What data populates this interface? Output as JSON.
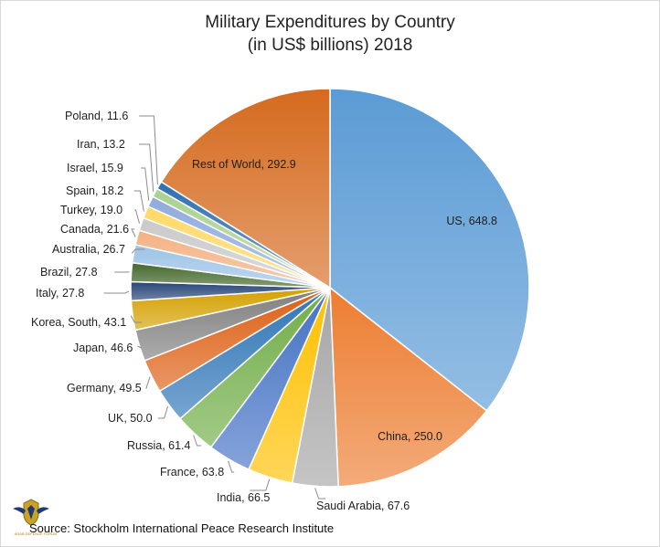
{
  "chart_data": {
    "type": "pie",
    "title": "Military Expenditures by Country",
    "subtitle": "(in US$ billions) 2018",
    "slices": [
      {
        "label": "US, 648.8",
        "value": 648.8,
        "color": "#5b9bd5"
      },
      {
        "label": "China, 250.0",
        "value": 250.0,
        "color": "#ed7d31"
      },
      {
        "label": "Saudi Arabia, 67.6",
        "value": 67.6,
        "color": "#a5a5a5"
      },
      {
        "label": "India, 66.5",
        "value": 66.5,
        "color": "#ffc000"
      },
      {
        "label": "France, 63.8",
        "value": 63.8,
        "color": "#4472c4"
      },
      {
        "label": "Russia, 61.4",
        "value": 61.4,
        "color": "#70ad47"
      },
      {
        "label": "UK, 50.0",
        "value": 50.0,
        "color": "#2e75b6"
      },
      {
        "label": "Germany, 49.5",
        "value": 49.5,
        "color": "#dd5f14"
      },
      {
        "label": "Japan, 46.6",
        "value": 46.6,
        "color": "#7f7f7f"
      },
      {
        "label": "Korea, South, 43.1",
        "value": 43.1,
        "color": "#d4a000"
      },
      {
        "label": "Italy, 27.8",
        "value": 27.8,
        "color": "#264478"
      },
      {
        "label": "Brazil, 27.8",
        "value": 27.8,
        "color": "#43682b"
      },
      {
        "label": "Australia, 26.7",
        "value": 26.7,
        "color": "#9dc3e6"
      },
      {
        "label": "Canada, 21.6",
        "value": 21.6,
        "color": "#f4b183"
      },
      {
        "label": "Turkey, 19.0",
        "value": 19.0,
        "color": "#c9c9c9"
      },
      {
        "label": "Spain, 18.2",
        "value": 18.2,
        "color": "#ffd966"
      },
      {
        "label": "Israel, 15.9",
        "value": 15.9,
        "color": "#8faadc"
      },
      {
        "label": "Iran, 13.2",
        "value": 13.2,
        "color": "#a9d18e"
      },
      {
        "label": "Poland, 11.6",
        "value": 11.6,
        "color": "#2f6fb0"
      },
      {
        "label": "Rest of World, 292.9",
        "value": 292.9,
        "color": "#d56a1e"
      }
    ],
    "legend": "none",
    "source": "Source: Stockholm International Peace Research Institute"
  },
  "watermark": {
    "text": "ARAB DEFENSE FORUM",
    "icon": "eagle-shield-logo"
  }
}
